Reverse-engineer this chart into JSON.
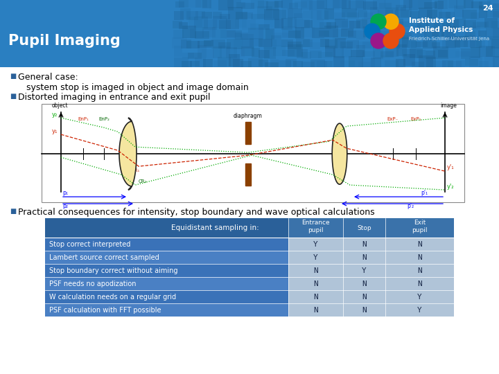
{
  "slide_number": "24",
  "title": "Pupil Imaging",
  "header_bg": "#2a7fc1",
  "table_header_bg": "#2a6099",
  "table_row_bg_dark": "#3a7abf",
  "table_row_bg_light": "#4a8acf",
  "table_val_bg": "#b8ccdf",
  "table_header_text": "#ffffff",
  "table_row_text": "#ffffff",
  "table_val_text": "#1a2a4a",
  "table_col_header": "Equidistant sampling in:",
  "table_rows": [
    [
      "Stop correct interpreted",
      "Y",
      "N",
      "N"
    ],
    [
      "Lambert source correct sampled",
      "Y",
      "N",
      "N"
    ],
    [
      "Stop boundary correct without aiming",
      "N",
      "Y",
      "N"
    ],
    [
      "PSF needs no apodization",
      "N",
      "N",
      "N"
    ],
    [
      "W calculation needs on a regular grid",
      "N",
      "N",
      "Y"
    ],
    [
      "PSF calculation with FFT possible",
      "N",
      "N",
      "Y"
    ]
  ],
  "bg_color": "#ffffff",
  "text_color": "#000000",
  "institute_text1": "Institute of",
  "institute_text2": "Applied Physics",
  "institute_text3": "Friedrich-Schiller-Universität Jena",
  "logo_colors": [
    "#e84e0f",
    "#f5a800",
    "#00a650",
    "#0072bc",
    "#9b1889",
    "#e84e0f"
  ],
  "logo_angles": [
    0,
    60,
    120,
    180,
    240,
    300
  ]
}
